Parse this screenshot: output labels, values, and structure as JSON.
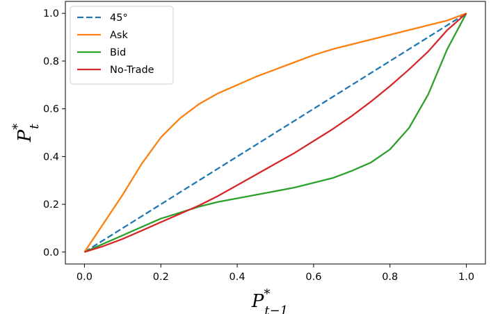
{
  "chart_data": {
    "type": "line",
    "xlabel": {
      "base": "P",
      "sup": "*",
      "sub": "t−1"
    },
    "ylabel": {
      "base": "P",
      "sup": "*",
      "sub": "t"
    },
    "xlim": [
      -0.05,
      1.05
    ],
    "ylim": [
      -0.05,
      1.05
    ],
    "x_ticks": [
      0.0,
      0.2,
      0.4,
      0.6,
      0.8,
      1.0
    ],
    "y_ticks": [
      0.0,
      0.2,
      0.4,
      0.6,
      0.8,
      1.0
    ],
    "x_tick_labels": [
      "0.0",
      "0.2",
      "0.4",
      "0.6",
      "0.8",
      "1.0"
    ],
    "y_tick_labels": [
      "0.0",
      "0.2",
      "0.4",
      "0.6",
      "0.8",
      "1.0"
    ],
    "grid": false,
    "legend_position": "top-left",
    "series": [
      {
        "name": "45°",
        "color": "#1f77b4",
        "dashed": true,
        "x": [
          0.0,
          0.2,
          0.4,
          0.6,
          0.8,
          0.95,
          1.0
        ],
        "y": [
          0.0,
          0.2,
          0.4,
          0.6,
          0.8,
          0.95,
          1.0
        ]
      },
      {
        "name": "Ask",
        "color": "#ff7f0e",
        "dashed": false,
        "x": [
          0.0,
          0.05,
          0.1,
          0.15,
          0.2,
          0.25,
          0.3,
          0.35,
          0.4,
          0.45,
          0.5,
          0.55,
          0.6,
          0.65,
          0.7,
          0.75,
          0.8,
          0.85,
          0.9,
          0.95,
          1.0
        ],
        "y": [
          0.0,
          0.12,
          0.24,
          0.37,
          0.48,
          0.56,
          0.62,
          0.665,
          0.7,
          0.735,
          0.765,
          0.795,
          0.825,
          0.85,
          0.87,
          0.89,
          0.91,
          0.93,
          0.95,
          0.97,
          1.0
        ]
      },
      {
        "name": "Bid",
        "color": "#2ca02c",
        "dashed": false,
        "x": [
          0.0,
          0.05,
          0.1,
          0.15,
          0.2,
          0.25,
          0.3,
          0.35,
          0.4,
          0.45,
          0.5,
          0.55,
          0.6,
          0.65,
          0.7,
          0.75,
          0.8,
          0.85,
          0.9,
          0.95,
          1.0
        ],
        "y": [
          0.0,
          0.035,
          0.07,
          0.105,
          0.14,
          0.165,
          0.19,
          0.21,
          0.225,
          0.24,
          0.255,
          0.27,
          0.29,
          0.31,
          0.34,
          0.375,
          0.43,
          0.52,
          0.66,
          0.85,
          1.0
        ]
      },
      {
        "name": "No-Trade",
        "color": "#d62728",
        "dashed": false,
        "x": [
          0.0,
          0.05,
          0.1,
          0.15,
          0.2,
          0.25,
          0.3,
          0.35,
          0.4,
          0.45,
          0.5,
          0.55,
          0.6,
          0.65,
          0.7,
          0.75,
          0.8,
          0.85,
          0.9,
          0.95,
          1.0
        ],
        "y": [
          0.0,
          0.025,
          0.055,
          0.09,
          0.125,
          0.16,
          0.195,
          0.235,
          0.28,
          0.325,
          0.37,
          0.415,
          0.465,
          0.515,
          0.57,
          0.63,
          0.695,
          0.765,
          0.84,
          0.93,
          1.0
        ]
      }
    ]
  }
}
